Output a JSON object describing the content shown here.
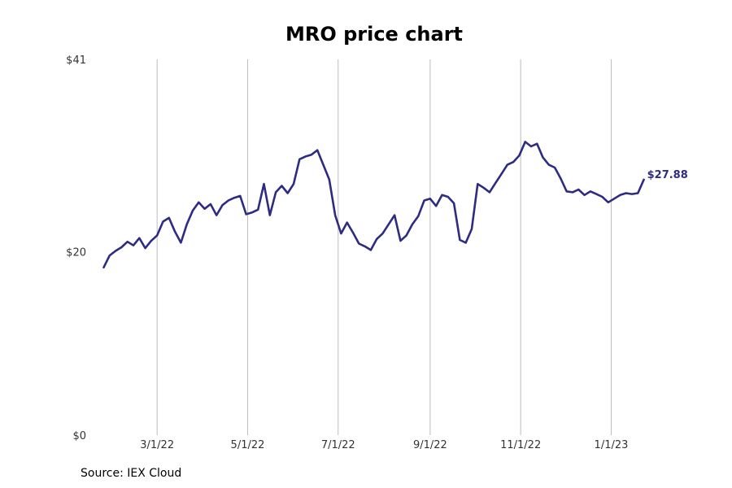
{
  "chart_data": {
    "type": "line",
    "title": "MRO price chart",
    "xlabel": "",
    "ylabel": "",
    "ylim": [
      0,
      41
    ],
    "xlim": [
      "2022-01-04",
      "2023-02-24"
    ],
    "y_ticks": [
      {
        "value": 0,
        "label": "$0"
      },
      {
        "value": 20,
        "label": "$20"
      },
      {
        "value": 41,
        "label": "$41"
      }
    ],
    "x_ticks": [
      {
        "date": "2022-03-01",
        "label": "3/1/22"
      },
      {
        "date": "2022-05-01",
        "label": "5/1/22"
      },
      {
        "date": "2022-07-01",
        "label": "7/1/22"
      },
      {
        "date": "2022-09-01",
        "label": "9/1/22"
      },
      {
        "date": "2022-11-01",
        "label": "11/1/22"
      },
      {
        "date": "2023-01-01",
        "label": "1/1/23"
      }
    ],
    "grid": "vertical",
    "line_color": "#2e2c82",
    "end_label": "$27.88",
    "series": [
      {
        "points": [
          [
            "2022-01-24",
            18.3
          ],
          [
            "2022-01-28",
            19.6
          ],
          [
            "2022-02-01",
            20.1
          ],
          [
            "2022-02-05",
            20.5
          ],
          [
            "2022-02-09",
            21.1
          ],
          [
            "2022-02-13",
            20.7
          ],
          [
            "2022-02-17",
            21.5
          ],
          [
            "2022-02-21",
            20.4
          ],
          [
            "2022-02-25",
            21.2
          ],
          [
            "2022-03-01",
            21.8
          ],
          [
            "2022-03-05",
            23.3
          ],
          [
            "2022-03-09",
            23.7
          ],
          [
            "2022-03-13",
            22.2
          ],
          [
            "2022-03-17",
            21.0
          ],
          [
            "2022-03-21",
            23.0
          ],
          [
            "2022-03-25",
            24.5
          ],
          [
            "2022-03-29",
            25.4
          ],
          [
            "2022-04-02",
            24.7
          ],
          [
            "2022-04-06",
            25.2
          ],
          [
            "2022-04-10",
            24.0
          ],
          [
            "2022-04-14",
            25.1
          ],
          [
            "2022-04-18",
            25.6
          ],
          [
            "2022-04-22",
            25.9
          ],
          [
            "2022-04-26",
            26.1
          ],
          [
            "2022-04-30",
            24.1
          ],
          [
            "2022-05-04",
            24.3
          ],
          [
            "2022-05-08",
            24.6
          ],
          [
            "2022-05-12",
            27.4
          ],
          [
            "2022-05-16",
            24.0
          ],
          [
            "2022-05-20",
            26.5
          ],
          [
            "2022-05-24",
            27.2
          ],
          [
            "2022-05-28",
            26.4
          ],
          [
            "2022-06-01",
            27.4
          ],
          [
            "2022-06-05",
            30.1
          ],
          [
            "2022-06-09",
            30.4
          ],
          [
            "2022-06-13",
            30.6
          ],
          [
            "2022-06-17",
            31.1
          ],
          [
            "2022-06-21",
            29.5
          ],
          [
            "2022-06-25",
            27.9
          ],
          [
            "2022-06-29",
            24.0
          ],
          [
            "2022-07-03",
            22.0
          ],
          [
            "2022-07-07",
            23.2
          ],
          [
            "2022-07-11",
            22.1
          ],
          [
            "2022-07-15",
            20.9
          ],
          [
            "2022-07-19",
            20.6
          ],
          [
            "2022-07-23",
            20.2
          ],
          [
            "2022-07-27",
            21.4
          ],
          [
            "2022-07-31",
            22.0
          ],
          [
            "2022-08-04",
            23.0
          ],
          [
            "2022-08-08",
            24.0
          ],
          [
            "2022-08-12",
            21.2
          ],
          [
            "2022-08-16",
            21.8
          ],
          [
            "2022-08-20",
            23.0
          ],
          [
            "2022-08-24",
            23.9
          ],
          [
            "2022-08-28",
            25.6
          ],
          [
            "2022-09-01",
            25.8
          ],
          [
            "2022-09-05",
            25.0
          ],
          [
            "2022-09-09",
            26.2
          ],
          [
            "2022-09-13",
            26.0
          ],
          [
            "2022-09-17",
            25.3
          ],
          [
            "2022-09-21",
            21.3
          ],
          [
            "2022-09-25",
            21.0
          ],
          [
            "2022-09-29",
            22.5
          ],
          [
            "2022-10-03",
            27.4
          ],
          [
            "2022-10-07",
            27.0
          ],
          [
            "2022-10-11",
            26.5
          ],
          [
            "2022-10-15",
            27.5
          ],
          [
            "2022-10-19",
            28.5
          ],
          [
            "2022-10-23",
            29.5
          ],
          [
            "2022-10-27",
            29.8
          ],
          [
            "2022-10-31",
            30.5
          ],
          [
            "2022-11-04",
            32.0
          ],
          [
            "2022-11-08",
            31.5
          ],
          [
            "2022-11-12",
            31.8
          ],
          [
            "2022-11-16",
            30.3
          ],
          [
            "2022-11-20",
            29.5
          ],
          [
            "2022-11-24",
            29.2
          ],
          [
            "2022-11-28",
            28.0
          ],
          [
            "2022-12-02",
            26.6
          ],
          [
            "2022-12-06",
            26.5
          ],
          [
            "2022-12-10",
            26.8
          ],
          [
            "2022-12-14",
            26.2
          ],
          [
            "2022-12-18",
            26.6
          ],
          [
            "2022-12-22",
            26.3
          ],
          [
            "2022-12-26",
            26.0
          ],
          [
            "2022-12-30",
            25.4
          ],
          [
            "2023-01-03",
            25.8
          ],
          [
            "2023-01-07",
            26.2
          ],
          [
            "2023-01-11",
            26.4
          ],
          [
            "2023-01-15",
            26.3
          ],
          [
            "2023-01-19",
            26.4
          ],
          [
            "2023-01-23",
            27.88
          ]
        ]
      }
    ]
  },
  "source": "Source: IEX Cloud"
}
